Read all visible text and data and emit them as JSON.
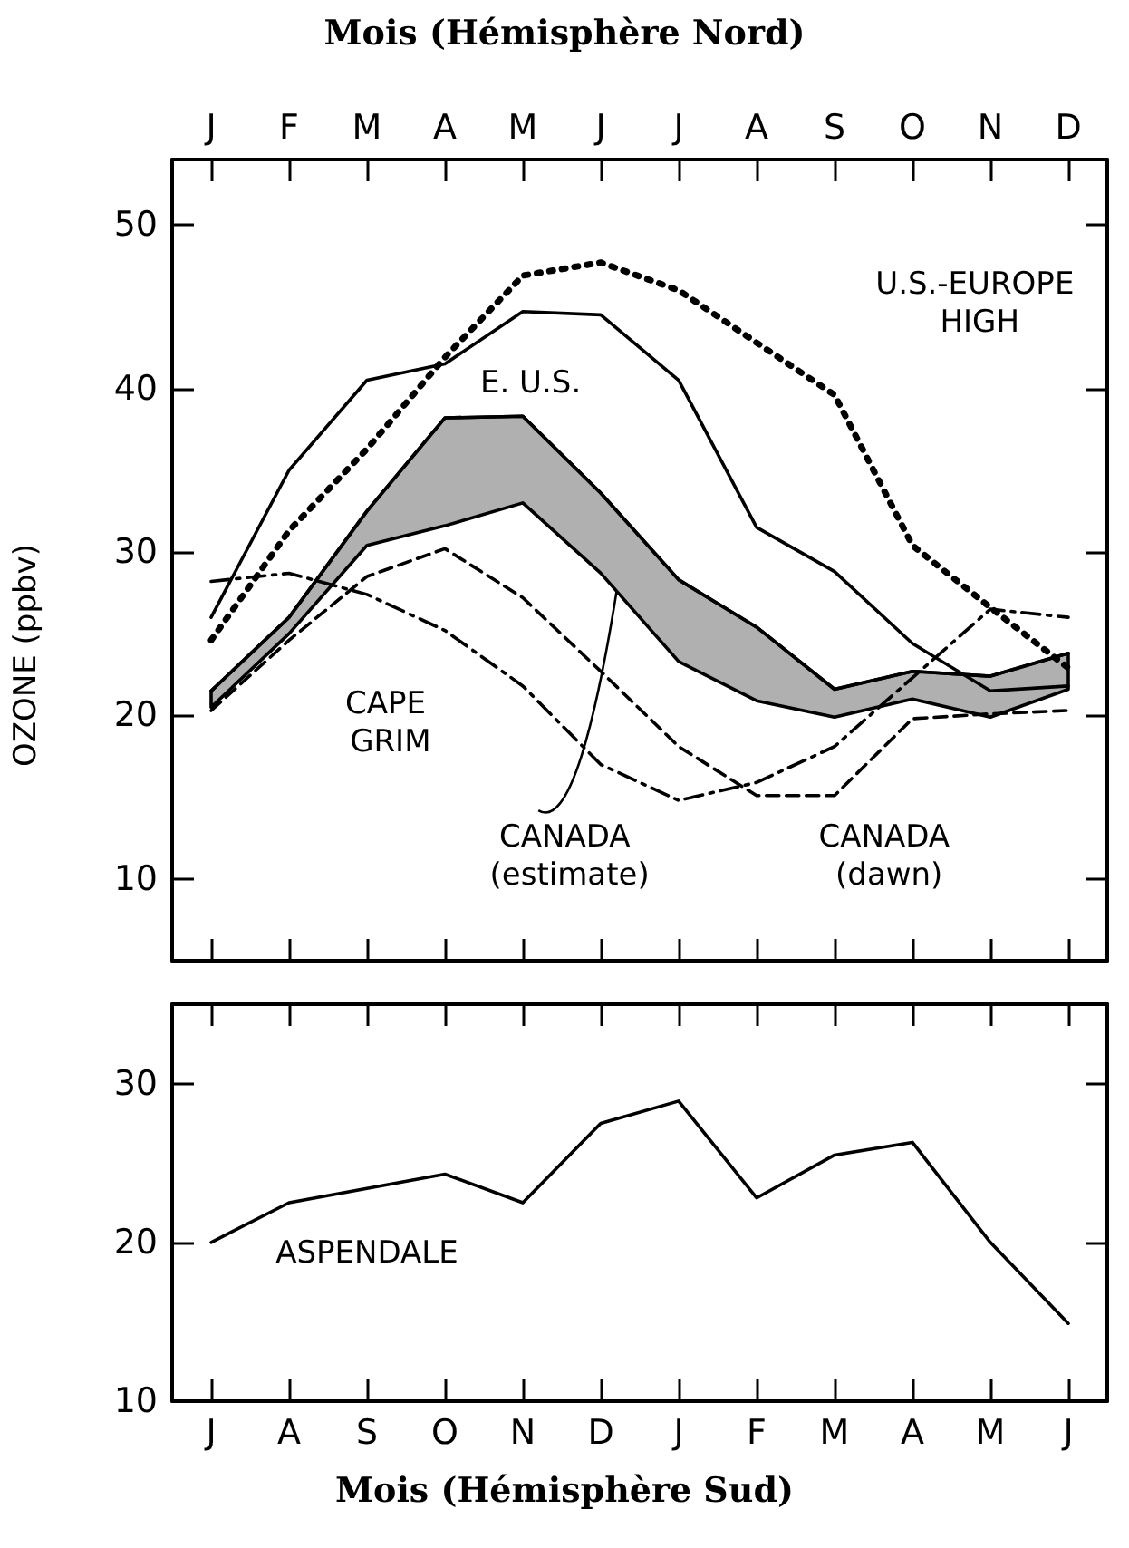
{
  "chart_data": [
    {
      "type": "line",
      "xlabel": "Mois (Hémisphère Nord)",
      "ylabel": "OZONE (ppbv)",
      "categories": [
        "J",
        "F",
        "M",
        "A",
        "M",
        "J",
        "J",
        "A",
        "S",
        "O",
        "N",
        "D"
      ],
      "ylim": [
        5,
        54
      ],
      "yticks": [
        10,
        20,
        30,
        40,
        50
      ],
      "grid": false,
      "marker": "none",
      "series": [
        {
          "name": "E. U.S.",
          "color": "#000000",
          "line_style": "solid",
          "values": [
            26,
            35,
            40.5,
            41.5,
            44.7,
            44.5,
            40.5,
            31.5,
            28.8,
            24.4,
            21.5,
            21.8
          ]
        },
        {
          "name": "U.S.-EUROPE HIGH",
          "color": "#000000",
          "line_style": "dotted",
          "values": [
            24.6,
            31.3,
            36.3,
            41.9,
            46.9,
            47.7,
            46,
            42.8,
            39.6,
            30.4,
            26.6,
            22.9
          ]
        },
        {
          "name": "CANADA (estimate)",
          "color": "#000000",
          "line_style": "solid",
          "values": [
            21.5,
            26,
            32.5,
            38.2,
            38.3,
            33.6,
            28.3,
            25.4,
            21.6,
            22.7,
            22.4,
            23.8
          ],
          "lower": [
            20.5,
            25,
            30.4,
            31.6,
            33,
            28.7,
            23.3,
            20.9,
            19.9,
            21,
            19.9,
            21.6
          ],
          "upper": [
            21.5,
            26,
            32.5,
            38.2,
            38.3,
            33.6,
            28.3,
            25.4,
            21.6,
            22.7,
            22.4,
            23.8
          ]
        },
        {
          "name": "CAPE GRIM",
          "color": "#000000",
          "line_style": "dashdot",
          "values": [
            28.2,
            28.7,
            27.4,
            25.2,
            21.8,
            17,
            14.8,
            15.9,
            18.1,
            22.3,
            26.5,
            26
          ]
        },
        {
          "name": "CANADA (dawn)",
          "color": "#000000",
          "line_style": "dashed",
          "values": [
            20.3,
            24.6,
            28.5,
            30.2,
            27.2,
            22.7,
            18.1,
            15.1,
            15.1,
            19.8,
            20.1,
            20.3
          ]
        }
      ]
    },
    {
      "type": "line",
      "xlabel": "Mois (Hémisphère Sud)",
      "categories": [
        "J",
        "A",
        "S",
        "O",
        "N",
        "D",
        "J",
        "F",
        "M",
        "A",
        "M",
        "J"
      ],
      "ylim": [
        10,
        35
      ],
      "yticks": [
        10,
        20,
        30
      ],
      "grid": false,
      "marker": "none",
      "series": [
        {
          "name": "ASPENDALE",
          "color": "#000000",
          "line_style": "solid",
          "values": [
            20,
            22.5,
            23.4,
            24.3,
            22.5,
            27.5,
            28.9,
            22.8,
            25.5,
            26.3,
            20,
            14.9
          ]
        }
      ]
    }
  ]
}
